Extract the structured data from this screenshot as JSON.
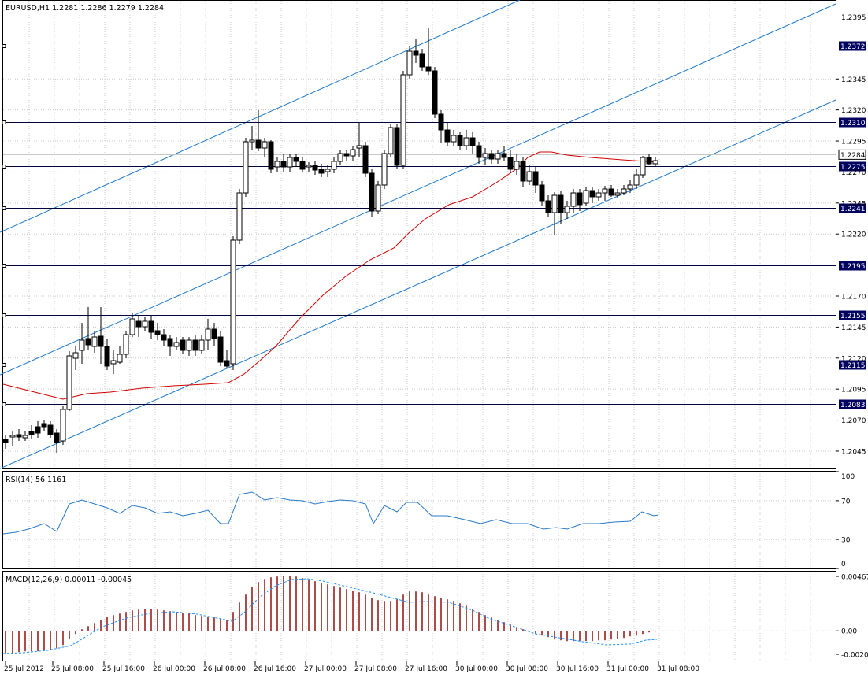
{
  "chart_data": {
    "type": "candlestick",
    "title": "EURUSD,H1  1.2281 1.2286 1.2279 1.2284",
    "colors": {
      "background": "#ffffff",
      "grid": "#c8c8c8",
      "frame": "#000000",
      "bull_body": "#ffffff",
      "bear_body": "#000000",
      "moving_average": "#d10000",
      "channel": "#1e78c8",
      "level_line": "#000040",
      "level_label_bg": "#000060",
      "rsi_line": "#2878c8",
      "macd_hist": "#8b0000",
      "macd_signal": "#1e90ff"
    },
    "price_axis": {
      "ticks": [
        "1.2395",
        "1.2345",
        "1.2320",
        "1.2295",
        "1.2270",
        "1.2245",
        "1.2220",
        "1.2170",
        "1.2145",
        "1.2120",
        "1.2095",
        "1.2070",
        "1.2045"
      ],
      "range": [
        1.2031,
        1.2408
      ]
    },
    "current_price": {
      "value": 1.2284,
      "label": "1.2284"
    },
    "levels": [
      {
        "value": 1.2372,
        "label": "1.2372"
      },
      {
        "value": 1.231,
        "label": "1.2310"
      },
      {
        "value": 1.2275,
        "label": "1.2275"
      },
      {
        "value": 1.2241,
        "label": "1.2241"
      },
      {
        "value": 1.2195,
        "label": "1.2195"
      },
      {
        "value": 1.2155,
        "label": "1.2155"
      },
      {
        "value": 1.2115,
        "label": "1.2115"
      },
      {
        "value": 1.2083,
        "label": "1.2083"
      }
    ],
    "time_axis": [
      "25 Jul 2012",
      "25 Jul 08:00",
      "25 Jul 16:00",
      "26 Jul 00:00",
      "26 Jul 08:00",
      "26 Jul 16:00",
      "27 Jul 00:00",
      "27 Jul 08:00",
      "27 Jul 16:00",
      "30 Jul 00:00",
      "30 Jul 08:00",
      "30 Jul 16:00",
      "31 Jul 00:00",
      "31 Jul 08:00"
    ],
    "rsi": {
      "label": "RSI(14) 56.1161",
      "ticks": [
        "100",
        "70",
        "30",
        "0"
      ],
      "range": [
        0,
        100
      ]
    },
    "macd": {
      "label": "MACD(12,26,9) 0.00011 -0.00045",
      "ticks": [
        "0.00467",
        "0.00",
        "-0.00201"
      ],
      "range": [
        -0.00201,
        0.00467
      ]
    }
  }
}
